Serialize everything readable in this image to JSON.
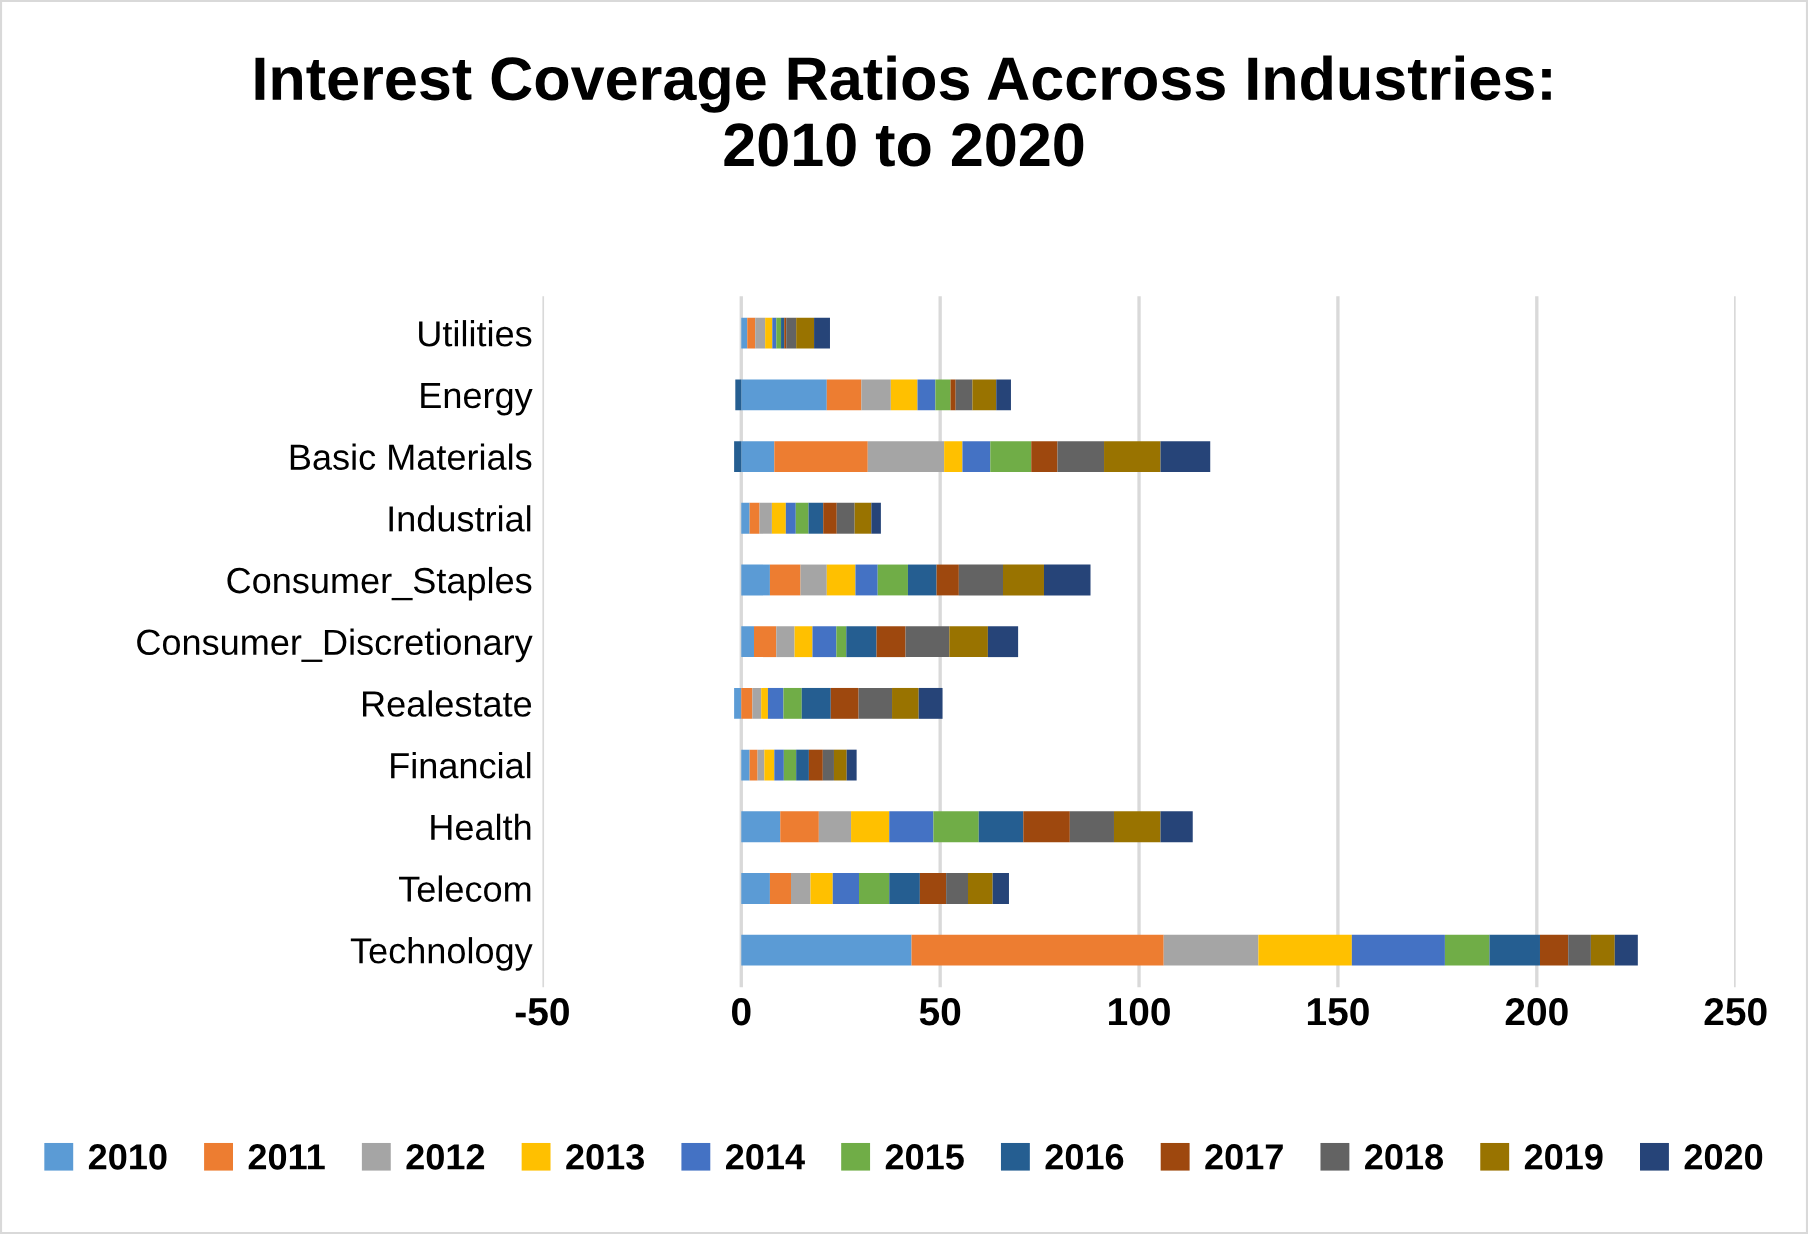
{
  "chart_data": {
    "type": "bar",
    "orientation": "horizontal",
    "stacked": true,
    "title": "Interest Coverage Ratios Accross Industries:\n2010 to 2020",
    "categories": [
      "Utilities",
      "Energy",
      "Basic Materials",
      "Industrial",
      "Consumer_Staples",
      "Consumer_Discretionary",
      "Realestate",
      "Financial",
      "Health",
      "Telecom",
      "Technology"
    ],
    "series": [
      {
        "name": "2010",
        "color": "#5b9bd5",
        "values": [
          1.5,
          21.5,
          8.3,
          2.1,
          7.2,
          3.2,
          -1.8,
          2.1,
          9.8,
          7.2,
          42.8
        ]
      },
      {
        "name": "2011",
        "color": "#ed7d31",
        "values": [
          2,
          8.7,
          23.5,
          2.5,
          7.7,
          5.6,
          2.8,
          2,
          9.7,
          5.3,
          63.4
        ]
      },
      {
        "name": "2012",
        "color": "#a5a5a5",
        "values": [
          2.5,
          7.4,
          19.2,
          3.1,
          6.6,
          4.6,
          2.2,
          1.7,
          8.1,
          4.9,
          23.8
        ]
      },
      {
        "name": "2013",
        "color": "#ffc000",
        "values": [
          1.8,
          6.7,
          4.6,
          3.5,
          7.2,
          4.5,
          1.7,
          2.5,
          9.6,
          5.6,
          23.5
        ]
      },
      {
        "name": "2014",
        "color": "#4472c4",
        "values": [
          1,
          4.5,
          7,
          2.5,
          5.6,
          6,
          3.9,
          2.4,
          11.1,
          6.6,
          23.4
        ]
      },
      {
        "name": "2015",
        "color": "#70ad47",
        "values": [
          1.2,
          3.8,
          10.3,
          3.2,
          7.6,
          2.5,
          4.6,
          3.1,
          11.4,
          7.6,
          11.2
        ]
      },
      {
        "name": "2016",
        "color": "#255e91",
        "values": [
          0.8,
          -1.5,
          -1.8,
          3.7,
          7.2,
          7.6,
          7.3,
          3.2,
          11.2,
          7.7,
          12.7
        ]
      },
      {
        "name": "2017",
        "color": "#9e480e",
        "values": [
          0.5,
          1.3,
          6.6,
          3.4,
          5.6,
          7.3,
          7,
          3.5,
          11.7,
          6.6,
          7.1
        ]
      },
      {
        "name": "2018",
        "color": "#636363",
        "values": [
          2.5,
          4.2,
          11.7,
          4.5,
          11.1,
          11,
          8.4,
          2.8,
          11.1,
          5.5,
          5.7
        ]
      },
      {
        "name": "2019",
        "color": "#997300",
        "values": [
          4.5,
          6,
          14.2,
          4.2,
          10.3,
          9.7,
          6.7,
          3.2,
          11.7,
          6.2,
          6
        ]
      },
      {
        "name": "2020",
        "color": "#264478",
        "values": [
          4,
          3.7,
          12.5,
          2.4,
          11.7,
          7.6,
          6,
          2.5,
          8.1,
          4.1,
          5.8
        ]
      }
    ],
    "xlim": [
      -50,
      250
    ],
    "xticks": [
      -50,
      0,
      50,
      100,
      150,
      200,
      250
    ],
    "grid": "x",
    "legend": "bottom"
  }
}
